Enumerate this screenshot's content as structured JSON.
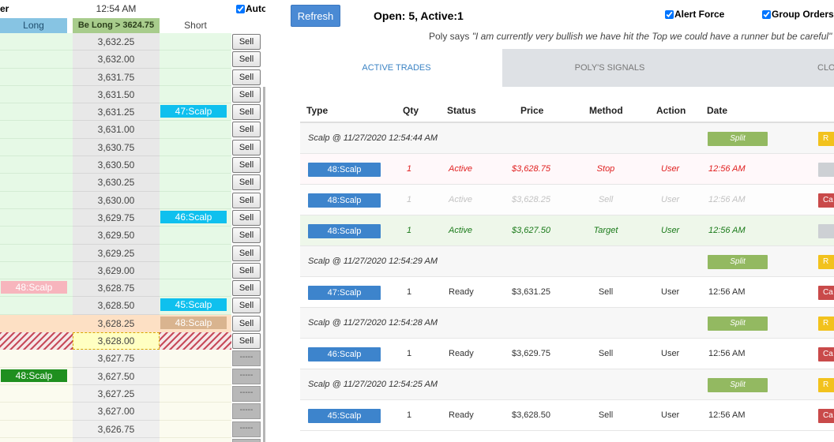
{
  "ladder": {
    "title": "er",
    "time": "12:54 AM",
    "auto_label": "Auto",
    "headers": {
      "long": "Long",
      "price": "Be Long > 3624.75",
      "short": "Short"
    },
    "rows": [
      {
        "price": "3,632.25",
        "zone": "up",
        "btn": "Sell"
      },
      {
        "price": "3,632.00",
        "zone": "up",
        "btn": "Sell"
      },
      {
        "price": "3,631.75",
        "zone": "up",
        "btn": "Sell"
      },
      {
        "price": "3,631.50",
        "zone": "up",
        "btn": "Sell"
      },
      {
        "price": "3,631.25",
        "zone": "up",
        "btn": "Sell",
        "short_tag": "47:Scalp",
        "short_color": "cyan"
      },
      {
        "price": "3,631.00",
        "zone": "up",
        "btn": "Sell"
      },
      {
        "price": "3,630.75",
        "zone": "up",
        "btn": "Sell"
      },
      {
        "price": "3,630.50",
        "zone": "up",
        "btn": "Sell"
      },
      {
        "price": "3,630.25",
        "zone": "up",
        "btn": "Sell"
      },
      {
        "price": "3,630.00",
        "zone": "up",
        "btn": "Sell"
      },
      {
        "price": "3,629.75",
        "zone": "up",
        "btn": "Sell",
        "short_tag": "46:Scalp",
        "short_color": "cyan"
      },
      {
        "price": "3,629.50",
        "zone": "up",
        "btn": "Sell"
      },
      {
        "price": "3,629.25",
        "zone": "up",
        "btn": "Sell"
      },
      {
        "price": "3,629.00",
        "zone": "up",
        "btn": "Sell"
      },
      {
        "price": "3,628.75",
        "zone": "up",
        "btn": "Sell",
        "long_tag": "48:Scalp",
        "long_color": "pink"
      },
      {
        "price": "3,628.50",
        "zone": "up",
        "btn": "Sell",
        "short_tag": "45:Scalp",
        "short_color": "cyan"
      },
      {
        "price": "3,628.25",
        "zone": "entry",
        "btn": "Sell",
        "short_tag": "48:Scalp",
        "short_color": "tan"
      },
      {
        "price": "3,628.00",
        "zone": "curr",
        "btn": "Sell"
      },
      {
        "price": "3,627.75",
        "zone": "dn",
        "btn": "-----"
      },
      {
        "price": "3,627.50",
        "zone": "dn",
        "btn": "-----",
        "long_tag": "48:Scalp",
        "long_color": "green"
      },
      {
        "price": "3,627.25",
        "zone": "dn",
        "btn": "-----"
      },
      {
        "price": "3,627.00",
        "zone": "dn",
        "btn": "-----"
      },
      {
        "price": "3,626.75",
        "zone": "dn",
        "btn": "-----"
      },
      {
        "price": "",
        "zone": "dn",
        "btn": "-----"
      }
    ]
  },
  "panel": {
    "refresh_label": "Refresh",
    "status": "Open: 5, Active:1",
    "alert_force_label": "Alert Force",
    "group_orders_label": "Group Orders",
    "poly_prefix": "Poly says ",
    "poly_quote": "\"I am currently very bullish we have hit the Top we could have a runner but be careful\"",
    "tabs": [
      "ACTIVE TRADES",
      "POLY'S SIGNALS",
      "CLOSED TR"
    ],
    "columns": [
      "Type",
      "Qty",
      "Status",
      "Price",
      "Method",
      "Action",
      "Date"
    ],
    "rows": [
      {
        "kind": "group",
        "text": "Scalp @ 11/27/2020 12:54:44 AM",
        "split": "Split",
        "rbtn": "R",
        "rbtn_color": "yellow"
      },
      {
        "kind": "trade",
        "style": "red",
        "type": "48:Scalp",
        "qty": "1",
        "status": "Active",
        "price": "$3,628.75",
        "method": "Stop",
        "action": "User",
        "date": "12:56 AM",
        "rbtn": "",
        "rbtn_color": "grey"
      },
      {
        "kind": "trade",
        "style": "gray",
        "type": "48:Scalp",
        "qty": "1",
        "status": "Active",
        "price": "$3,628.25",
        "method": "Sell",
        "action": "User",
        "date": "12:56 AM",
        "rbtn": "Ca",
        "rbtn_color": "redbtn"
      },
      {
        "kind": "trade",
        "style": "green",
        "type": "48:Scalp",
        "qty": "1",
        "status": "Active",
        "price": "$3,627.50",
        "method": "Target",
        "action": "User",
        "date": "12:56 AM",
        "rbtn": "",
        "rbtn_color": "grey"
      },
      {
        "kind": "group",
        "text": "Scalp @ 11/27/2020 12:54:29 AM",
        "split": "Split",
        "rbtn": "R",
        "rbtn_color": "yellow"
      },
      {
        "kind": "trade",
        "style": "plain",
        "type": "47:Scalp",
        "qty": "1",
        "status": "Ready",
        "price": "$3,631.25",
        "method": "Sell",
        "action": "User",
        "date": "12:56 AM",
        "rbtn": "Ca",
        "rbtn_color": "redbtn"
      },
      {
        "kind": "group",
        "text": "Scalp @ 11/27/2020 12:54:28 AM",
        "split": "Split",
        "rbtn": "R",
        "rbtn_color": "yellow"
      },
      {
        "kind": "trade",
        "style": "plain",
        "type": "46:Scalp",
        "qty": "1",
        "status": "Ready",
        "price": "$3,629.75",
        "method": "Sell",
        "action": "User",
        "date": "12:56 AM",
        "rbtn": "Ca",
        "rbtn_color": "redbtn"
      },
      {
        "kind": "group",
        "text": "Scalp @ 11/27/2020 12:54:25 AM",
        "split": "Split",
        "rbtn": "R",
        "rbtn_color": "yellow"
      },
      {
        "kind": "trade",
        "style": "plain",
        "type": "45:Scalp",
        "qty": "1",
        "status": "Ready",
        "price": "$3,628.50",
        "method": "Sell",
        "action": "User",
        "date": "12:56 AM",
        "rbtn": "Ca",
        "rbtn_color": "redbtn"
      }
    ]
  }
}
